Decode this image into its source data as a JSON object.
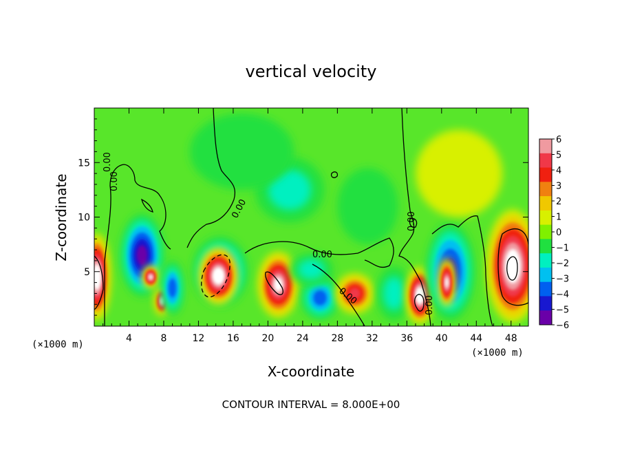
{
  "chart_data": {
    "type": "heatmap",
    "title": "vertical velocity",
    "xlabel": "X-coordinate",
    "ylabel": "Z-coordinate",
    "x_unit": "(×1000 m)",
    "z_unit": "(×1000 m)",
    "xlim": [
      0,
      50
    ],
    "ylim": [
      0,
      20
    ],
    "x_ticks": [
      "4",
      "8",
      "12",
      "16",
      "20",
      "24",
      "28",
      "32",
      "36",
      "40",
      "44",
      "48"
    ],
    "y_ticks": [
      "5",
      "10",
      "15"
    ],
    "colorbar": {
      "min": -6,
      "max": 6,
      "tick_labels": [
        "6",
        "5",
        "4",
        "3",
        "2",
        "1",
        "0",
        "−1",
        "−2",
        "−3",
        "−4",
        "−5",
        "−6"
      ],
      "colors": [
        "#f09aa0",
        "#f03848",
        "#f02010",
        "#f08010",
        "#f0c800",
        "#d8f000",
        "#80f000",
        "#20e040",
        "#00f0c0",
        "#00c0f0",
        "#0060f0",
        "#1818d0",
        "#6a00a8"
      ]
    },
    "contour_labels": [
      "0.00",
      "0.00",
      "0.00",
      "0.00",
      "0.00",
      "0.00",
      "0.00"
    ],
    "footer": "CONTOUR INTERVAL = 8.000E+00",
    "features": [
      {
        "kind": "updraft",
        "x": 0.3,
        "z": 4.5,
        "rx": 1.5,
        "rz": 4.0,
        "value": 8
      },
      {
        "kind": "downdraft",
        "x": 5.5,
        "z": 6.5,
        "rx": 2.5,
        "rz": 3.8,
        "value": -6
      },
      {
        "kind": "updraft",
        "x": 6.5,
        "z": 4.5,
        "rx": 0.9,
        "rz": 1.0,
        "value": 7
      },
      {
        "kind": "updraft",
        "x": 7.8,
        "z": 2.3,
        "rx": 0.8,
        "rz": 1.3,
        "value": 7
      },
      {
        "kind": "downdraft",
        "x": 9.0,
        "z": 3.5,
        "rx": 1.3,
        "rz": 2.5,
        "value": -4
      },
      {
        "kind": "downdraft",
        "x": 14.5,
        "z": 5.0,
        "rx": 3.2,
        "rz": 3.2,
        "value": -5
      },
      {
        "kind": "updraft",
        "x": 14.3,
        "z": 4.6,
        "rx": 2.2,
        "rz": 2.6,
        "value": 8
      },
      {
        "kind": "updraft",
        "x": 21.2,
        "z": 3.8,
        "rx": 2.3,
        "rz": 3.0,
        "value": 7
      },
      {
        "kind": "downdraft",
        "x": 26.0,
        "z": 2.6,
        "rx": 2.2,
        "rz": 2.0,
        "value": -4
      },
      {
        "kind": "downdraft",
        "x": 25.0,
        "z": 5.2,
        "rx": 2.5,
        "rz": 1.5,
        "value": -2
      },
      {
        "kind": "updraft",
        "x": 30.0,
        "z": 3.0,
        "rx": 2.2,
        "rz": 1.8,
        "value": 5
      },
      {
        "kind": "downdraft",
        "x": 34.5,
        "z": 3.0,
        "rx": 2.0,
        "rz": 2.5,
        "value": -2
      },
      {
        "kind": "updraft",
        "x": 37.5,
        "z": 2.8,
        "rx": 1.6,
        "rz": 2.6,
        "value": 8
      },
      {
        "kind": "downdraft",
        "x": 41.0,
        "z": 5.0,
        "rx": 2.8,
        "rz": 4.5,
        "value": -5
      },
      {
        "kind": "updraft",
        "x": 40.6,
        "z": 4.0,
        "rx": 0.9,
        "rz": 2.2,
        "value": 7
      },
      {
        "kind": "updraft",
        "x": 48.2,
        "z": 5.5,
        "rx": 3.0,
        "rz": 5.2,
        "value": 8
      },
      {
        "kind": "downdraft",
        "x": 22.5,
        "z": 12.5,
        "rx": 4.0,
        "rz": 3.0,
        "value": -2
      },
      {
        "kind": "downdraft",
        "x": 31.5,
        "z": 11.0,
        "rx": 3.5,
        "rz": 3.5,
        "value": -1.5
      },
      {
        "kind": "updraft",
        "x": 42.0,
        "z": 14.0,
        "rx": 5.0,
        "rz": 4.0,
        "value": 1.2
      },
      {
        "kind": "downdraft",
        "x": 17.0,
        "z": 16.0,
        "rx": 6.0,
        "rz": 3.5,
        "value": -1.0
      },
      {
        "kind": "updraft",
        "x": 5.0,
        "z": 16.0,
        "rx": 5.0,
        "rz": 4.0,
        "value": 0.8
      }
    ]
  }
}
